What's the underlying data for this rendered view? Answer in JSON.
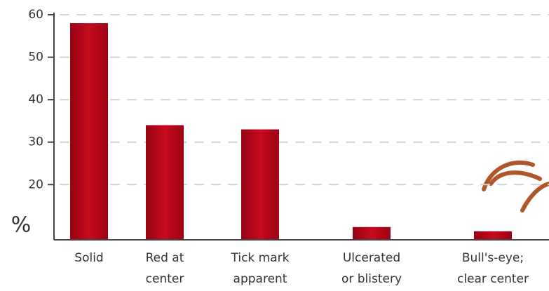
{
  "chart_data": {
    "type": "bar",
    "y_label": "%",
    "categories": [
      [
        "Solid"
      ],
      [
        "Red at",
        "center"
      ],
      [
        "Tick mark",
        "apparent"
      ],
      [
        "Ulcerated",
        "or blistery"
      ],
      [
        "Bull's-eye;",
        "clear center"
      ]
    ],
    "values": [
      58,
      34,
      33,
      10,
      9
    ],
    "color": "#b3061a",
    "ylim": [
      7,
      60.5
    ],
    "yticks": [
      20,
      30,
      40,
      50,
      60
    ],
    "grid": true
  }
}
